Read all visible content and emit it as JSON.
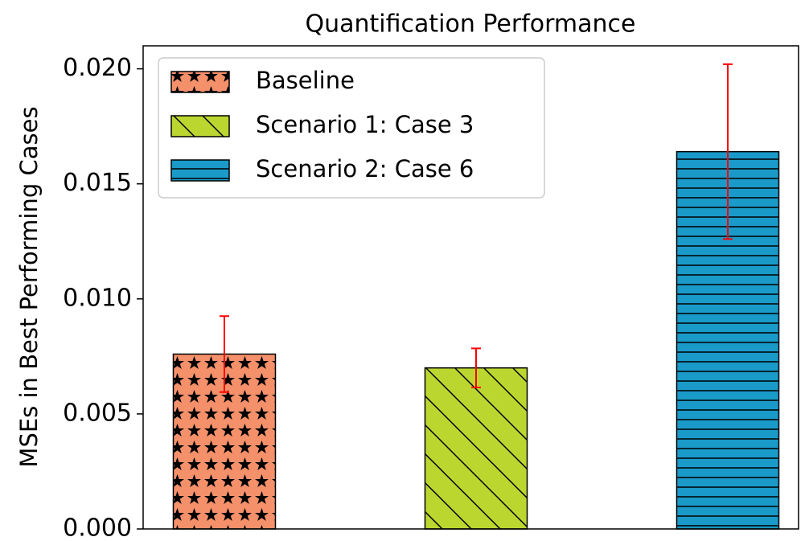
{
  "chart_data": {
    "type": "bar",
    "title": "Quantification Performance",
    "y_label": "MSEs in Best Performing Cases",
    "ylim": [
      0,
      0.021
    ],
    "yticks": [
      {
        "value": 0,
        "label": "0.000"
      },
      {
        "value": 0.005,
        "label": "0.005"
      },
      {
        "value": 0.01,
        "label": "0.010"
      },
      {
        "value": 0.015,
        "label": "0.015"
      },
      {
        "value": 0.02,
        "label": "0.020"
      }
    ],
    "legend": "upper left",
    "error_color": "#ff0000",
    "series": [
      {
        "name": "Baseline",
        "color": "#f4906a",
        "hatch": "stars",
        "values": [
          0.0076
        ],
        "errors": [
          0.00165
        ]
      },
      {
        "name": "Scenario 1: Case 3",
        "color": "#bcd630",
        "hatch": "backslash",
        "values": [
          0.007
        ],
        "errors": [
          0.00085
        ]
      },
      {
        "name": "Scenario 2: Case 6",
        "color": "#1a9ac9",
        "hatch": "horizontal",
        "values": [
          0.0164
        ],
        "errors": [
          0.0038
        ]
      }
    ]
  }
}
